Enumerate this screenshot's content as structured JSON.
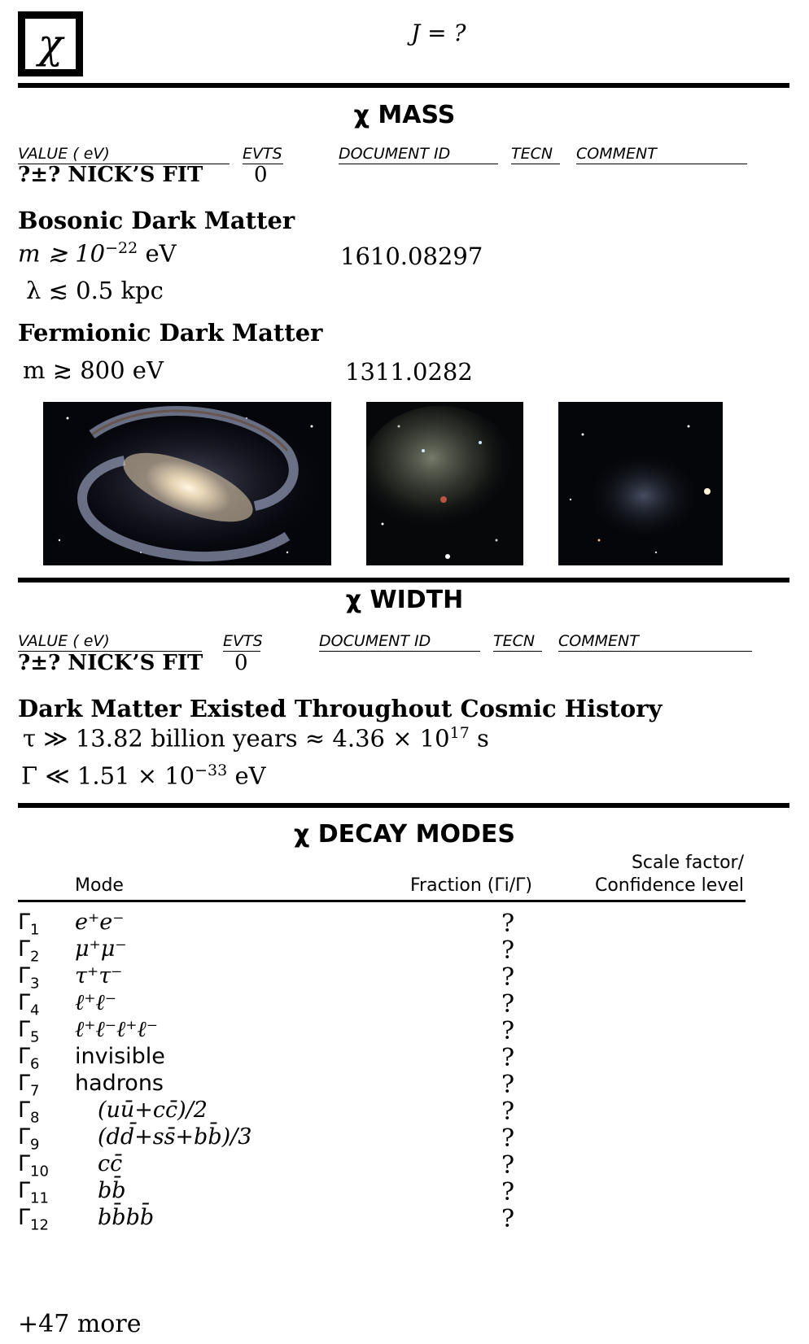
{
  "header": {
    "logo_symbol": "χ",
    "spin_line": "J = ?"
  },
  "mass": {
    "title": "χ MASS",
    "columns": {
      "value": "VALUE (  eV)",
      "evts": "EVTS",
      "document_id": "DOCUMENT ID",
      "tecn": "TECN",
      "comment": "COMMENT"
    },
    "fit_value": "?±? NICK’S FIT",
    "fit_evts": "0",
    "bosonic": {
      "heading": "Bosonic Dark Matter",
      "line1_lhs": "m ≳ 10",
      "line1_exp": "−22",
      "line1_unit": " eV",
      "line1_doc": "1610.08297",
      "line2": "λ ≲ 0.5 kpc"
    },
    "fermionic": {
      "heading": "Fermionic Dark Matter",
      "line1": "m ≳ 800 eV",
      "line1_doc": "1311.0282"
    }
  },
  "images": [
    {
      "name": "barred-spiral-galaxy"
    },
    {
      "name": "irregular-dwarf-galaxy"
    },
    {
      "name": "spheroidal-dwarf-galaxy"
    }
  ],
  "width": {
    "title": "χ WIDTH",
    "columns": {
      "value": "VALUE (  eV)",
      "evts": "EVTS",
      "document_id": "DOCUMENT ID",
      "tecn": "TECN",
      "comment": "COMMENT"
    },
    "fit_value": "?±? NICK’S FIT",
    "fit_evts": "0",
    "heading": "Dark Matter Existed Throughout Cosmic History",
    "tau_pre": "τ ≫ 13.82 billion years ≈ 4.36 × 10",
    "tau_exp": "17",
    "tau_unit": " s",
    "gamma_pre": "Γ ≪ 1.51 × 10",
    "gamma_exp": "−33",
    "gamma_unit": " eV"
  },
  "decay": {
    "title": "χ DECAY MODES",
    "col_mode": "Mode",
    "col_fraction": "Fraction (Γi/Γ)",
    "col_scale1": "Scale factor/",
    "col_scale2": "Confidence level",
    "rows": [
      {
        "g": "Γ",
        "sub": "1",
        "mode": "e⁺e⁻",
        "frac": "?"
      },
      {
        "g": "Γ",
        "sub": "2",
        "mode": "μ⁺μ⁻",
        "frac": "?"
      },
      {
        "g": "Γ",
        "sub": "3",
        "mode": "τ⁺τ⁻",
        "frac": "?"
      },
      {
        "g": "Γ",
        "sub": "4",
        "mode": "ℓ⁺ℓ⁻",
        "frac": "?"
      },
      {
        "g": "Γ",
        "sub": "5",
        "mode": "ℓ⁺ℓ⁻ℓ⁺ℓ⁻",
        "frac": "?"
      },
      {
        "g": "Γ",
        "sub": "6",
        "mode": "invisible",
        "frac": "?"
      },
      {
        "g": "Γ",
        "sub": "7",
        "mode": "hadrons",
        "frac": "?"
      },
      {
        "g": "Γ",
        "sub": "8",
        "mode": "(uū+cc̄)/2",
        "frac": "?"
      },
      {
        "g": "Γ",
        "sub": "9",
        "mode": "(dd̄+ss̄+bb̄)/3",
        "frac": "?"
      },
      {
        "g": "Γ",
        "sub": "10",
        "mode": "cc̄",
        "frac": "?"
      },
      {
        "g": "Γ",
        "sub": "11",
        "mode": "bb̄",
        "frac": "?"
      },
      {
        "g": "Γ",
        "sub": "12",
        "mode": "bb̄bb̄",
        "frac": "?"
      }
    ],
    "more": "+47 more"
  }
}
